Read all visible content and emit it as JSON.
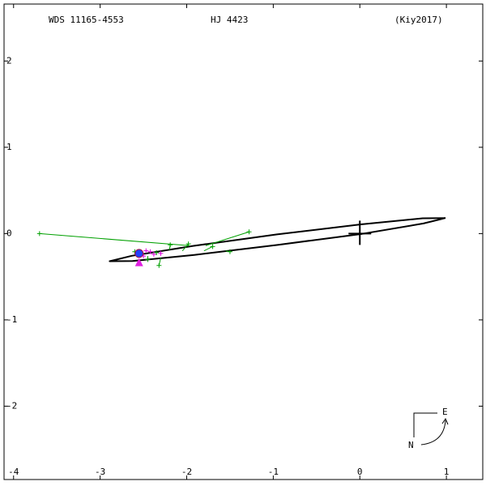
{
  "chart_data": {
    "type": "orbit",
    "title": "WDS 11165-4553",
    "subtitle": "HJ 4423",
    "reference": "(Kiy2017)",
    "compass_east": "E",
    "compass_north": "N",
    "xlim": [
      -4.11,
      1.42
    ],
    "ylim": [
      -2.85,
      2.66
    ],
    "xticks": [
      -4,
      -3,
      -2,
      -1,
      0,
      1
    ],
    "yticks": [
      -2,
      -1,
      0,
      1,
      2
    ],
    "orbit": {
      "color": "#000000",
      "x": [
        0.99,
        0.726,
        0.013,
        -0.958,
        -1.927,
        -2.634,
        -2.89,
        -2.626,
        -1.913,
        -0.942,
        0.027,
        0.734,
        0.99
      ],
      "y": [
        0.18,
        0.177,
        0.107,
        -0.01,
        -0.143,
        -0.257,
        -0.32,
        -0.317,
        -0.247,
        -0.13,
        -0.003,
        0.117,
        0.18
      ]
    },
    "primary": {
      "color": "#000000",
      "x": 0,
      "y": 0
    },
    "series": [
      {
        "color": "#00a000",
        "marker": "plus",
        "x": [
          -3.7,
          -1.28,
          -1.5,
          -2.32,
          -2.19,
          -1.98,
          -1.7,
          -2.45,
          -2.6,
          -2.35
        ],
        "y": [
          0.0,
          0.02,
          -0.21,
          -0.37,
          -0.13,
          -0.12,
          -0.15,
          -0.3,
          -0.21,
          -0.22
        ],
        "predicted_x": [
          -1.97,
          -1.78,
          -1.55,
          -2.3,
          -2.2,
          -2.05,
          -1.8,
          -2.45,
          -2.55,
          -2.35
        ],
        "predicted_y": [
          -0.14,
          -0.14,
          -0.2,
          -0.28,
          -0.19,
          -0.2,
          -0.2,
          -0.26,
          -0.25,
          -0.25
        ]
      },
      {
        "color": "#e000e0",
        "marker": "plus",
        "x": [
          -2.42,
          -2.38,
          -2.3,
          -2.5,
          -2.47
        ],
        "y": [
          -0.21,
          -0.24,
          -0.23,
          -0.26,
          -0.2
        ]
      },
      {
        "color": "#2040ff",
        "marker": "circle",
        "x": [
          -2.55
        ],
        "y": [
          -0.23
        ]
      },
      {
        "color": "#e020e0",
        "marker": "triangle",
        "x": [
          -2.55
        ],
        "y": [
          -0.34
        ]
      }
    ]
  }
}
